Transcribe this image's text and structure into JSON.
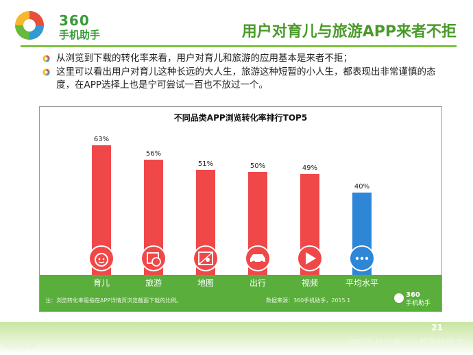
{
  "brand": {
    "number": "360",
    "name": "手机助手"
  },
  "header": {
    "title": "用户对育儿与旅游APP来者不拒"
  },
  "bullets": [
    "从浏览到下载的转化率来看，用户对育儿和旅游的应用基本是来者不拒；",
    "这里可以看出用户对育儿这种长远的大人生，旅游这种短暂的小人生，都表现出非常谨慎的态度，在APP选择上也是宁可尝试一百也不放过一个。"
  ],
  "chart_note": "注：浏览转化率是指在APP详情页浏览截面下载的比例。",
  "chart_source": "数据来源：360手机助手，2015.1",
  "chart_logo": {
    "number": "360",
    "name": "手机助手"
  },
  "footer": {
    "page": "21",
    "text": "中国手机应用行业趋势绿皮书",
    "left": "大数跨境"
  },
  "colors": {
    "bar_red": "#f04848",
    "bar_blue": "#2e86d6",
    "band_green": "#5aae3c",
    "title_green": "#4a9a2a"
  },
  "chart_data": {
    "type": "bar",
    "title": "不同品类APP浏览转化率排行TOP5",
    "categories": [
      "育儿",
      "旅游",
      "地图",
      "出行",
      "视频",
      "平均水平"
    ],
    "values": [
      63,
      56,
      51,
      50,
      49,
      40
    ],
    "data_labels": [
      "63%",
      "56%",
      "51%",
      "50%",
      "49%",
      "40%"
    ],
    "icons": [
      "baby-face-icon",
      "calendar-clock-icon",
      "map-pin-icon",
      "car-icon",
      "play-icon",
      "more-dots-icon"
    ],
    "bar_colors": [
      "#f04848",
      "#f04848",
      "#f04848",
      "#f04848",
      "#f04848",
      "#2e86d6"
    ]
  }
}
